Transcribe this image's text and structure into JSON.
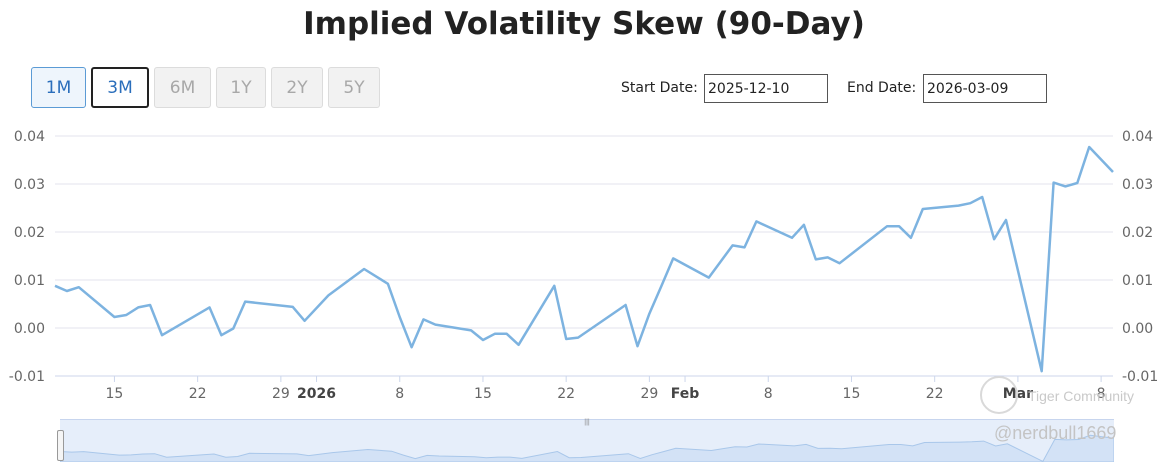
{
  "title": "Implied Volatility Skew (90-Day)",
  "range_buttons": [
    {
      "label": "1M",
      "state": "active"
    },
    {
      "label": "3M",
      "state": "selected"
    },
    {
      "label": "6M",
      "state": "disabled"
    },
    {
      "label": "1Y",
      "state": "disabled"
    },
    {
      "label": "2Y",
      "state": "disabled"
    },
    {
      "label": "5Y",
      "state": "disabled"
    }
  ],
  "date_range": {
    "start_label": "Start Date:",
    "start_value": "2025-12-10",
    "end_label": "End Date:",
    "end_value": "2026-03-09"
  },
  "watermark": {
    "brand": "Tiger Community",
    "handle": "@nerdbull1669"
  },
  "colors": {
    "line": "#7db3e0",
    "grid": "#e3e3ec",
    "axis_text": "#666666",
    "navigator_fill": "#e6eefa"
  },
  "chart_data": {
    "type": "line",
    "title": "Implied Volatility Skew (90-Day)",
    "xlabel": "",
    "ylabel": "",
    "ylim": [
      -0.01,
      0.04
    ],
    "y_ticks": [
      -0.01,
      0.0,
      0.01,
      0.02,
      0.03,
      0.04
    ],
    "y_tick_labels": [
      "-0.01",
      "0.00",
      "0.01",
      "0.02",
      "0.03",
      "0.04"
    ],
    "y_axis_both_sides": true,
    "xlim": [
      "2025-12-10",
      "2026-03-09"
    ],
    "x_ticks": [
      {
        "date": "2025-12-15",
        "label": "15",
        "bold": false
      },
      {
        "date": "2025-12-22",
        "label": "22",
        "bold": false
      },
      {
        "date": "2025-12-29",
        "label": "29",
        "bold": false
      },
      {
        "date": "2026-01-01",
        "label": "2026",
        "bold": true
      },
      {
        "date": "2026-01-08",
        "label": "8",
        "bold": false
      },
      {
        "date": "2026-01-15",
        "label": "15",
        "bold": false
      },
      {
        "date": "2026-01-22",
        "label": "22",
        "bold": false
      },
      {
        "date": "2026-01-29",
        "label": "29",
        "bold": false
      },
      {
        "date": "2026-02-01",
        "label": "Feb",
        "bold": true
      },
      {
        "date": "2026-02-08",
        "label": "8",
        "bold": false
      },
      {
        "date": "2026-02-15",
        "label": "15",
        "bold": false
      },
      {
        "date": "2026-02-22",
        "label": "22",
        "bold": false
      },
      {
        "date": "2026-03-01",
        "label": "Mar",
        "bold": true
      },
      {
        "date": "2026-03-08",
        "label": "8",
        "bold": false
      }
    ],
    "grid": true,
    "series": [
      {
        "color": "#7db3e0",
        "points": [
          [
            "2025-12-10",
            0.0088
          ],
          [
            "2025-12-11",
            0.0077
          ],
          [
            "2025-12-12",
            0.0085
          ],
          [
            "2025-12-15",
            0.0023
          ],
          [
            "2025-12-16",
            0.0027
          ],
          [
            "2025-12-17",
            0.0043
          ],
          [
            "2025-12-18",
            0.0048
          ],
          [
            "2025-12-19",
            -0.0015
          ],
          [
            "2025-12-23",
            0.0043
          ],
          [
            "2025-12-24",
            -0.0015
          ],
          [
            "2025-12-25",
            -0.0001
          ],
          [
            "2025-12-26",
            0.0055
          ],
          [
            "2025-12-30",
            0.0044
          ],
          [
            "2025-12-31",
            0.0015
          ],
          [
            "2026-01-02",
            0.0068
          ],
          [
            "2026-01-05",
            0.0123
          ],
          [
            "2026-01-07",
            0.0092
          ],
          [
            "2026-01-08",
            0.0023
          ],
          [
            "2026-01-09",
            -0.004
          ],
          [
            "2026-01-10",
            0.0018
          ],
          [
            "2026-01-11",
            0.0007
          ],
          [
            "2026-01-14",
            -0.0005
          ],
          [
            "2026-01-15",
            -0.0025
          ],
          [
            "2026-01-16",
            -0.0012
          ],
          [
            "2026-01-17",
            -0.0012
          ],
          [
            "2026-01-18",
            -0.0035
          ],
          [
            "2026-01-21",
            0.0088
          ],
          [
            "2026-01-22",
            -0.0023
          ],
          [
            "2026-01-23",
            -0.002
          ],
          [
            "2026-01-27",
            0.0048
          ],
          [
            "2026-01-28",
            -0.0038
          ],
          [
            "2026-01-29",
            0.003
          ],
          [
            "2026-01-30",
            0.0087
          ],
          [
            "2026-01-31",
            0.0145
          ],
          [
            "2026-02-03",
            0.0105
          ],
          [
            "2026-02-05",
            0.0172
          ],
          [
            "2026-02-06",
            0.0168
          ],
          [
            "2026-02-07",
            0.0222
          ],
          [
            "2026-02-10",
            0.0188
          ],
          [
            "2026-02-11",
            0.0215
          ],
          [
            "2026-02-12",
            0.0143
          ],
          [
            "2026-02-13",
            0.0147
          ],
          [
            "2026-02-14",
            0.0135
          ],
          [
            "2026-02-18",
            0.0212
          ],
          [
            "2026-02-19",
            0.0212
          ],
          [
            "2026-02-20",
            0.0188
          ],
          [
            "2026-02-21",
            0.0248
          ],
          [
            "2026-02-24",
            0.0255
          ],
          [
            "2026-02-25",
            0.026
          ],
          [
            "2026-02-26",
            0.0273
          ],
          [
            "2026-02-27",
            0.0185
          ],
          [
            "2026-02-28",
            0.0225
          ],
          [
            "2026-03-03",
            -0.009
          ],
          [
            "2026-03-04",
            0.0303
          ],
          [
            "2026-03-05",
            0.0295
          ],
          [
            "2026-03-06",
            0.0302
          ],
          [
            "2026-03-07",
            0.0377
          ],
          [
            "2026-03-09",
            0.0325
          ]
        ]
      }
    ]
  }
}
